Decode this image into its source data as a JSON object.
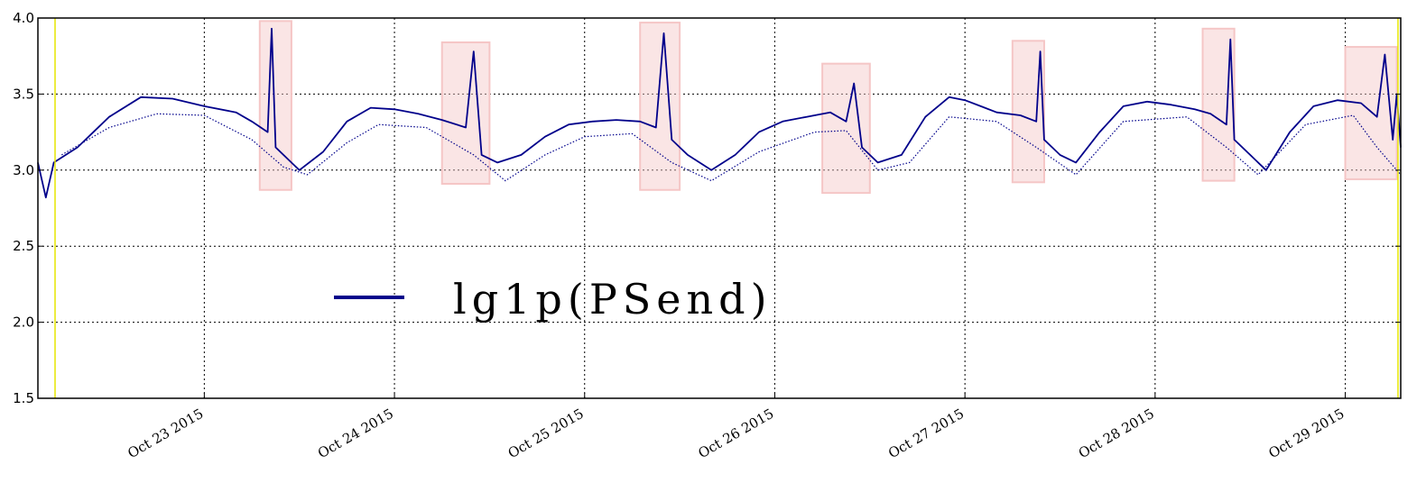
{
  "chart_data": {
    "type": "line",
    "title": "",
    "xlabel": "",
    "ylabel": "",
    "ylim": [
      1.5,
      4.0
    ],
    "yticks": [
      1.5,
      2.0,
      2.5,
      3.0,
      3.5,
      4.0
    ],
    "ytick_labels": [
      "1.5",
      "2.0",
      "2.5",
      "3.0",
      "3.5",
      "4.0"
    ],
    "xlim": [
      "2015-10-22 03:00",
      "2015-10-29 07:00"
    ],
    "xtick_labels": [
      "Oct 23 2015",
      "Oct 24 2015",
      "Oct 25 2015",
      "Oct 26 2015",
      "Oct 27 2015",
      "Oct 28 2015",
      "Oct 29 2015"
    ],
    "grid": true,
    "legend": {
      "placement": "center-left",
      "entries": [
        "lg1p(PSend)"
      ]
    },
    "series": [
      {
        "name": "lg1p(PSend)",
        "color": "#00008b",
        "style": "solid",
        "points": [
          [
            "2015-10-22 03:00",
            3.05
          ],
          [
            "2015-10-22 04:00",
            2.82
          ],
          [
            "2015-10-22 05:00",
            3.05
          ],
          [
            "2015-10-22 08:00",
            3.15
          ],
          [
            "2015-10-22 12:00",
            3.35
          ],
          [
            "2015-10-22 16:00",
            3.48
          ],
          [
            "2015-10-22 20:00",
            3.47
          ],
          [
            "2015-10-23 00:00",
            3.42
          ],
          [
            "2015-10-23 04:00",
            3.38
          ],
          [
            "2015-10-23 06:00",
            3.32
          ],
          [
            "2015-10-23 08:00",
            3.25
          ],
          [
            "2015-10-23 08:30",
            3.93
          ],
          [
            "2015-10-23 09:00",
            3.15
          ],
          [
            "2015-10-23 11:00",
            3.05
          ],
          [
            "2015-10-23 12:00",
            3.0
          ],
          [
            "2015-10-23 15:00",
            3.12
          ],
          [
            "2015-10-23 18:00",
            3.32
          ],
          [
            "2015-10-23 21:00",
            3.41
          ],
          [
            "2015-10-24 00:00",
            3.4
          ],
          [
            "2015-10-24 03:00",
            3.37
          ],
          [
            "2015-10-24 06:00",
            3.33
          ],
          [
            "2015-10-24 09:00",
            3.28
          ],
          [
            "2015-10-24 10:00",
            3.78
          ],
          [
            "2015-10-24 11:00",
            3.1
          ],
          [
            "2015-10-24 13:00",
            3.05
          ],
          [
            "2015-10-24 16:00",
            3.1
          ],
          [
            "2015-10-24 19:00",
            3.22
          ],
          [
            "2015-10-24 22:00",
            3.3
          ],
          [
            "2015-10-25 01:00",
            3.32
          ],
          [
            "2015-10-25 04:00",
            3.33
          ],
          [
            "2015-10-25 07:00",
            3.32
          ],
          [
            "2015-10-25 09:00",
            3.28
          ],
          [
            "2015-10-25 10:00",
            3.9
          ],
          [
            "2015-10-25 11:00",
            3.2
          ],
          [
            "2015-10-25 13:00",
            3.1
          ],
          [
            "2015-10-25 16:00",
            3.0
          ],
          [
            "2015-10-25 19:00",
            3.1
          ],
          [
            "2015-10-25 22:00",
            3.25
          ],
          [
            "2015-10-26 01:00",
            3.32
          ],
          [
            "2015-10-26 04:00",
            3.35
          ],
          [
            "2015-10-26 07:00",
            3.38
          ],
          [
            "2015-10-26 09:00",
            3.32
          ],
          [
            "2015-10-26 10:00",
            3.57
          ],
          [
            "2015-10-26 11:00",
            3.15
          ],
          [
            "2015-10-26 13:00",
            3.05
          ],
          [
            "2015-10-26 16:00",
            3.1
          ],
          [
            "2015-10-26 19:00",
            3.35
          ],
          [
            "2015-10-26 22:00",
            3.48
          ],
          [
            "2015-10-27 00:00",
            3.46
          ],
          [
            "2015-10-27 02:00",
            3.42
          ],
          [
            "2015-10-27 04:00",
            3.38
          ],
          [
            "2015-10-27 07:00",
            3.36
          ],
          [
            "2015-10-27 09:00",
            3.32
          ],
          [
            "2015-10-27 09:30",
            3.78
          ],
          [
            "2015-10-27 10:00",
            3.2
          ],
          [
            "2015-10-27 12:00",
            3.1
          ],
          [
            "2015-10-27 14:00",
            3.05
          ],
          [
            "2015-10-27 17:00",
            3.25
          ],
          [
            "2015-10-27 20:00",
            3.42
          ],
          [
            "2015-10-27 23:00",
            3.45
          ],
          [
            "2015-10-28 02:00",
            3.43
          ],
          [
            "2015-10-28 05:00",
            3.4
          ],
          [
            "2015-10-28 07:00",
            3.37
          ],
          [
            "2015-10-28 09:00",
            3.3
          ],
          [
            "2015-10-28 09:30",
            3.86
          ],
          [
            "2015-10-28 10:00",
            3.2
          ],
          [
            "2015-10-28 12:00",
            3.1
          ],
          [
            "2015-10-28 14:00",
            3.0
          ],
          [
            "2015-10-28 17:00",
            3.25
          ],
          [
            "2015-10-28 20:00",
            3.42
          ],
          [
            "2015-10-28 23:00",
            3.46
          ],
          [
            "2015-10-29 02:00",
            3.44
          ],
          [
            "2015-10-29 04:00",
            3.35
          ],
          [
            "2015-10-29 05:00",
            3.76
          ],
          [
            "2015-10-29 06:00",
            3.2
          ],
          [
            "2015-10-29 06:30",
            3.5
          ],
          [
            "2015-10-29 07:00",
            3.15
          ]
        ]
      },
      {
        "name": "",
        "color": "#00008b",
        "style": "dotted",
        "points": [
          [
            "2015-10-22 06:00",
            3.1
          ],
          [
            "2015-10-22 12:00",
            3.28
          ],
          [
            "2015-10-22 18:00",
            3.37
          ],
          [
            "2015-10-23 00:00",
            3.36
          ],
          [
            "2015-10-23 06:00",
            3.2
          ],
          [
            "2015-10-23 10:00",
            3.02
          ],
          [
            "2015-10-23 13:00",
            2.97
          ],
          [
            "2015-10-23 18:00",
            3.18
          ],
          [
            "2015-10-23 22:00",
            3.3
          ],
          [
            "2015-10-24 04:00",
            3.28
          ],
          [
            "2015-10-24 10:00",
            3.1
          ],
          [
            "2015-10-24 14:00",
            2.93
          ],
          [
            "2015-10-24 19:00",
            3.1
          ],
          [
            "2015-10-25 00:00",
            3.22
          ],
          [
            "2015-10-25 06:00",
            3.24
          ],
          [
            "2015-10-25 11:00",
            3.05
          ],
          [
            "2015-10-25 16:00",
            2.93
          ],
          [
            "2015-10-25 22:00",
            3.12
          ],
          [
            "2015-10-26 05:00",
            3.25
          ],
          [
            "2015-10-26 09:00",
            3.26
          ],
          [
            "2015-10-26 13:00",
            3.0
          ],
          [
            "2015-10-26 17:00",
            3.05
          ],
          [
            "2015-10-26 22:00",
            3.35
          ],
          [
            "2015-10-27 04:00",
            3.32
          ],
          [
            "2015-10-27 09:00",
            3.15
          ],
          [
            "2015-10-27 14:00",
            2.97
          ],
          [
            "2015-10-27 20:00",
            3.32
          ],
          [
            "2015-10-28 04:00",
            3.35
          ],
          [
            "2015-10-28 09:00",
            3.15
          ],
          [
            "2015-10-28 13:00",
            2.97
          ],
          [
            "2015-10-28 19:00",
            3.3
          ],
          [
            "2015-10-29 01:00",
            3.36
          ],
          [
            "2015-10-29 04:00",
            3.15
          ],
          [
            "2015-10-29 07:00",
            2.97
          ]
        ]
      }
    ],
    "highlight_boxes": [
      {
        "x": [
          "2015-10-23 07:00",
          "2015-10-23 11:00"
        ],
        "y": [
          2.87,
          3.98
        ]
      },
      {
        "x": [
          "2015-10-24 06:00",
          "2015-10-24 12:00"
        ],
        "y": [
          2.91,
          3.84
        ]
      },
      {
        "x": [
          "2015-10-25 07:00",
          "2015-10-25 12:00"
        ],
        "y": [
          2.87,
          3.97
        ]
      },
      {
        "x": [
          "2015-10-26 06:00",
          "2015-10-26 12:00"
        ],
        "y": [
          2.85,
          3.7
        ]
      },
      {
        "x": [
          "2015-10-27 06:00",
          "2015-10-27 10:00"
        ],
        "y": [
          2.92,
          3.85
        ]
      },
      {
        "x": [
          "2015-10-28 06:00",
          "2015-10-28 10:00"
        ],
        "y": [
          2.93,
          3.93
        ]
      },
      {
        "x": [
          "2015-10-29 00:00",
          "2015-10-29 06:30"
        ],
        "y": [
          2.94,
          3.81
        ]
      }
    ],
    "highlight_color": "#f5c6c6",
    "axis_color": "#000000",
    "boundary_color": "#e6e600"
  }
}
